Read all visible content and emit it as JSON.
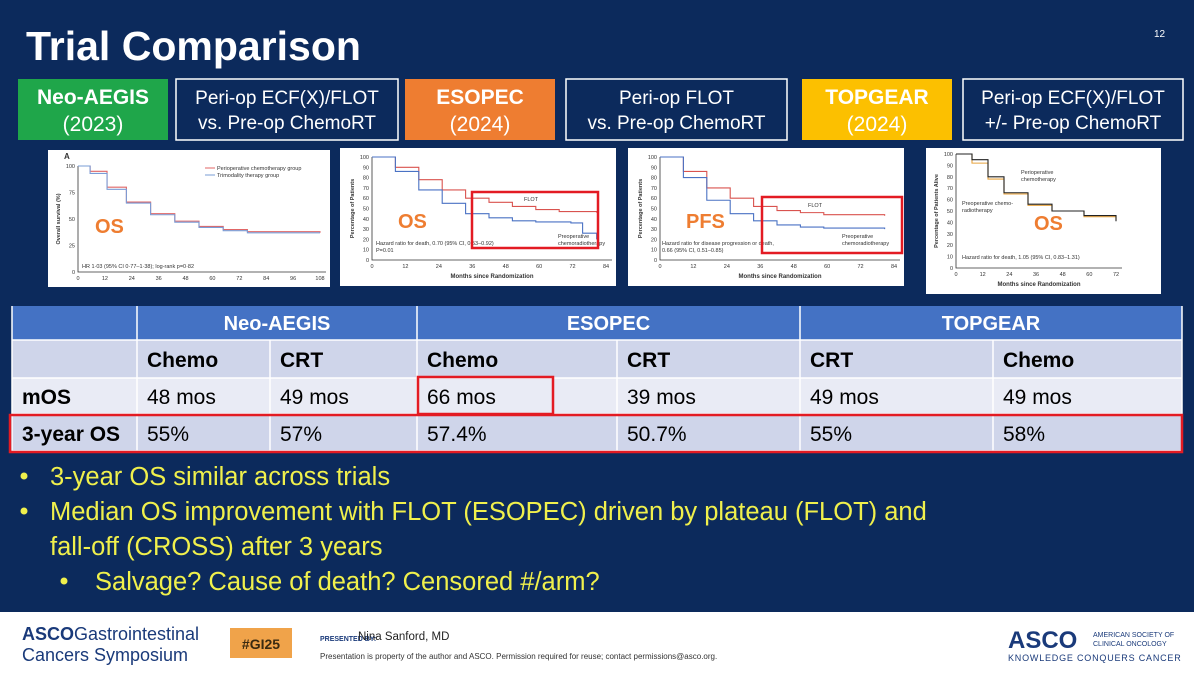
{
  "header": {
    "title": "Trial Comparison",
    "page_number": "12"
  },
  "trials": [
    {
      "name": "Neo-AEGIS",
      "year": "(2023)",
      "design": [
        "Peri-op ECF(X)/FLOT",
        "vs. Pre-op ChemoRT"
      ]
    },
    {
      "name": "ESOPEC",
      "year": "(2024)",
      "design": [
        "Peri-op FLOT",
        "vs. Pre-op ChemoRT"
      ]
    },
    {
      "name": "TOPGEAR",
      "year": "(2024)",
      "design": [
        "Peri-op ECF(X)/FLOT",
        "+/- Pre-op ChemoRT"
      ]
    }
  ],
  "plots": [
    {
      "panel": "A",
      "label": "OS",
      "ylabel": "Overall survival (%)",
      "yticks": [
        "0",
        "25",
        "50",
        "75",
        "100"
      ],
      "xticks": [
        "0",
        "12",
        "24",
        "36",
        "48",
        "60",
        "72",
        "84",
        "96",
        "108"
      ],
      "legend": [
        "Perioperative chemotherapy group",
        "Trimodality therapy group"
      ],
      "note": [
        "HR 1·03 (95% CI 0·77–1·38); log-rank p=0·82"
      ]
    },
    {
      "label": "OS",
      "ylabel": "Percentage of Patients",
      "xlabel": "Months since Randomization",
      "yticks": [
        "0",
        "10",
        "20",
        "30",
        "40",
        "50",
        "60",
        "70",
        "80",
        "90",
        "100"
      ],
      "xticks": [
        "0",
        "12",
        "24",
        "36",
        "48",
        "60",
        "72",
        "84"
      ],
      "curve_labels": [
        [
          "FLOT"
        ],
        [
          "Preoperative",
          "chemoradiotherapy"
        ]
      ],
      "note": [
        "Hazard ratio for death, 0.70 (95% CI, 0.53–0.92)",
        "P=0.01"
      ]
    },
    {
      "label": "PFS",
      "ylabel": "Percentage of Patients",
      "xlabel": "Months since Randomization",
      "yticks": [
        "0",
        "10",
        "20",
        "30",
        "40",
        "50",
        "60",
        "70",
        "80",
        "90",
        "100"
      ],
      "xticks": [
        "0",
        "12",
        "24",
        "36",
        "48",
        "60",
        "72",
        "84"
      ],
      "curve_labels": [
        [
          "FLOT"
        ],
        [
          "Preoperative",
          "chemoradiotherapy"
        ]
      ],
      "note": [
        "Hazard ratio for disease progression or death,",
        "0.66 (95% CI, 0.51–0.85)"
      ]
    },
    {
      "label": "OS",
      "ylabel": "Percentage of Patients Alive",
      "xlabel": "Months since Randomization",
      "yticks": [
        "0",
        "10",
        "20",
        "30",
        "40",
        "50",
        "60",
        "70",
        "80",
        "90",
        "100"
      ],
      "xticks": [
        "0",
        "12",
        "24",
        "36",
        "48",
        "60",
        "72"
      ],
      "curve_labels": [
        [
          "Perioperative",
          "chemotherapy"
        ],
        [
          "Preoperative chemo-",
          "radiotherapy"
        ]
      ],
      "note": [
        "Hazard ratio for death, 1.05 (95% CI, 0.83–1.31)"
      ]
    }
  ],
  "table": {
    "groups": [
      "Neo-AEGIS",
      "ESOPEC",
      "TOPGEAR"
    ],
    "subheaders": [
      "Chemo",
      "CRT",
      "Chemo",
      "CRT",
      "CRT",
      "Chemo"
    ],
    "rows": [
      [
        "mOS",
        "48 mos",
        "49 mos",
        "66 mos",
        "39 mos",
        "49 mos",
        "49 mos"
      ],
      [
        "3-year OS",
        "55%",
        "57%",
        "57.4%",
        "50.7%",
        "55%",
        "58%"
      ]
    ]
  },
  "bullets": [
    {
      "level": 1,
      "lines": [
        "3-year OS similar across trials"
      ]
    },
    {
      "level": 1,
      "lines": [
        "Median OS improvement with FLOT (ESOPEC) driven by plateau (FLOT) and",
        "fall-off (CROSS) after 3 years"
      ]
    },
    {
      "level": 2,
      "lines": [
        "Salvage? Cause of death? Censored #/arm?"
      ]
    }
  ],
  "footer": {
    "symposium": [
      "ASCO",
      "Gastrointestinal",
      "Cancers Symposium"
    ],
    "hashtag": "#GI25",
    "presented_by": "PRESENTED BY:",
    "presenter": "Nina Sanford, MD",
    "disclaimer": "Presentation is property of the author and ASCO. Permission required for reuse; contact permissions@asco.org.",
    "asco": "ASCO",
    "society": [
      "AMERICAN SOCIETY OF",
      "CLINICAL ONCOLOGY"
    ],
    "tagline": "KNOWLEDGE CONQUERS CANCER"
  }
}
